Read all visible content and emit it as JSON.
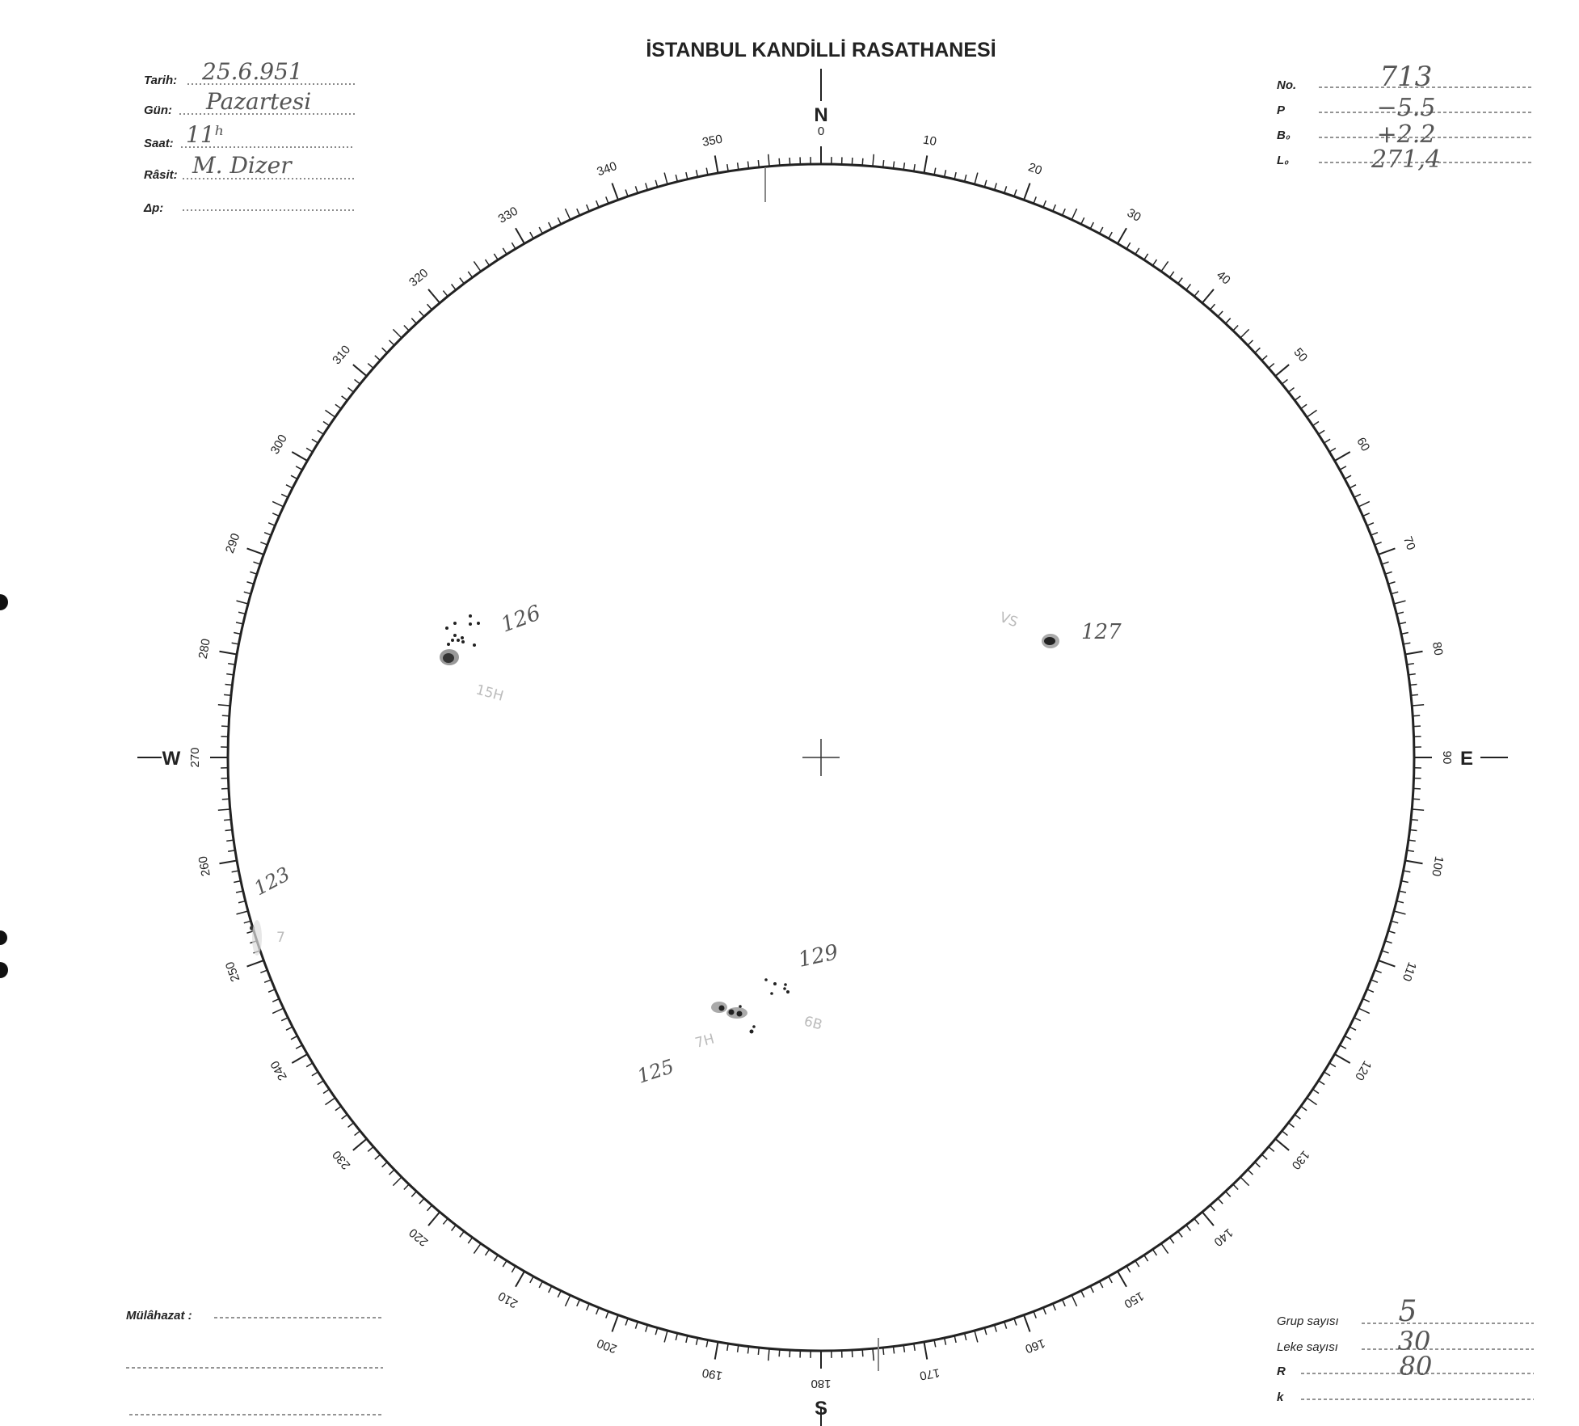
{
  "header": {
    "title": "İSTANBUL KANDİLLİ RASATHANESİ"
  },
  "left_fields": [
    {
      "label": "Tarih:",
      "value": "25.6.951"
    },
    {
      "label": "Gün:",
      "value": "Pazartesi"
    },
    {
      "label": "Saat:",
      "value": "11ʰ"
    },
    {
      "label": "Râsit:",
      "value": "M. Dizer"
    },
    {
      "label": "Δp:",
      "value": ""
    }
  ],
  "right_fields": [
    {
      "label": "No.",
      "value": "713"
    },
    {
      "label": "P",
      "value": "−5.5"
    },
    {
      "label": "B₀",
      "value": "+2.2"
    },
    {
      "label": "L₀",
      "value": "271,4"
    }
  ],
  "bottom_fields": [
    {
      "label": "Grup sayısı",
      "value": "5"
    },
    {
      "label": "Leke sayısı",
      "value": "30"
    },
    {
      "label": "R",
      "value": "80"
    },
    {
      "label": "k",
      "value": ""
    }
  ],
  "remarks": {
    "label": "Mülâhazat :",
    "value": ""
  },
  "compass": {
    "north": "N",
    "south": "S",
    "east": "E",
    "west": "W"
  },
  "scale_labels": [
    "0",
    "10",
    "20",
    "30",
    "40",
    "50",
    "60",
    "70",
    "80",
    "90",
    "100",
    "110",
    "120",
    "130",
    "140",
    "150",
    "160",
    "170",
    "180",
    "190",
    "200",
    "210",
    "220",
    "230",
    "240",
    "250",
    "260",
    "270",
    "280",
    "290",
    "300",
    "310",
    "320",
    "330",
    "340",
    "350"
  ],
  "groups": [
    {
      "number": "126",
      "note": "15H"
    },
    {
      "number": "127",
      "note": "VS"
    },
    {
      "number": "129",
      "note": "6B"
    },
    {
      "number": "125",
      "note": "7H"
    },
    {
      "number": "123",
      "note": "7"
    }
  ],
  "colors": {
    "ink": "#222222",
    "pencil": "#555555"
  }
}
